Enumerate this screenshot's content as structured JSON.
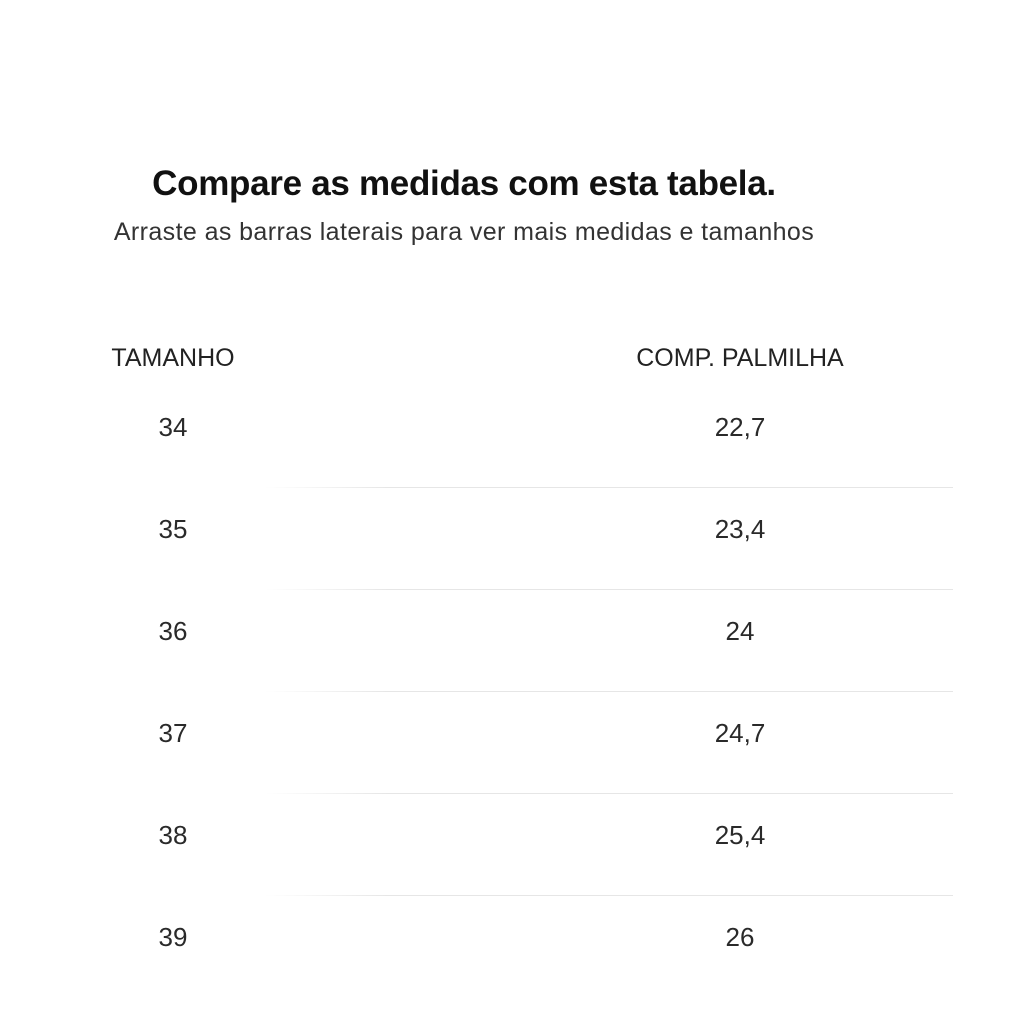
{
  "header": {
    "title": "Compare as medidas com esta tabela.",
    "subtitle": "Arraste as barras laterais para ver mais medidas e tamanhos"
  },
  "table": {
    "columns": [
      "TAMANHO",
      "COMP. PALMILHA"
    ],
    "rows": [
      {
        "size": "34",
        "insole": "22,7"
      },
      {
        "size": "35",
        "insole": "23,4"
      },
      {
        "size": "36",
        "insole": "24"
      },
      {
        "size": "37",
        "insole": "24,7"
      },
      {
        "size": "38",
        "insole": "25,4"
      },
      {
        "size": "39",
        "insole": "26"
      }
    ]
  },
  "colors": {
    "text": "#1a1a1a",
    "divider": "#e6e6e6",
    "background": "#ffffff"
  }
}
